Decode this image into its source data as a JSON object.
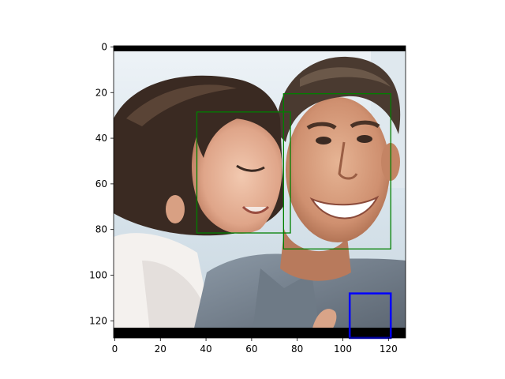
{
  "figure": {
    "x_ticks": [
      "0",
      "20",
      "40",
      "60",
      "80",
      "100",
      "120"
    ],
    "y_ticks": [
      "0",
      "20",
      "40",
      "60",
      "80",
      "100",
      "120"
    ],
    "x_range": [
      -0.5,
      127.5
    ],
    "y_range": [
      -0.5,
      127.5
    ],
    "y_inverted": true
  },
  "image": {
    "description_icon": "photo-couple-icon",
    "padding_color": "#000000",
    "padding_rows": {
      "top": [
        0,
        2
      ],
      "bottom": [
        124,
        128
      ]
    }
  },
  "boxes": [
    {
      "name": "woman-face",
      "color": "#008000",
      "x0": 36,
      "y0": 28.5,
      "x1": 77,
      "y1": 81.5
    },
    {
      "name": "man-face",
      "color": "#008000",
      "x0": 74,
      "y0": 20.5,
      "x1": 121,
      "y1": 88.5
    },
    {
      "name": "partial-box",
      "color": "#0000ff",
      "x0": 103,
      "y0": 108,
      "x1": 121,
      "y1": 128
    }
  ]
}
